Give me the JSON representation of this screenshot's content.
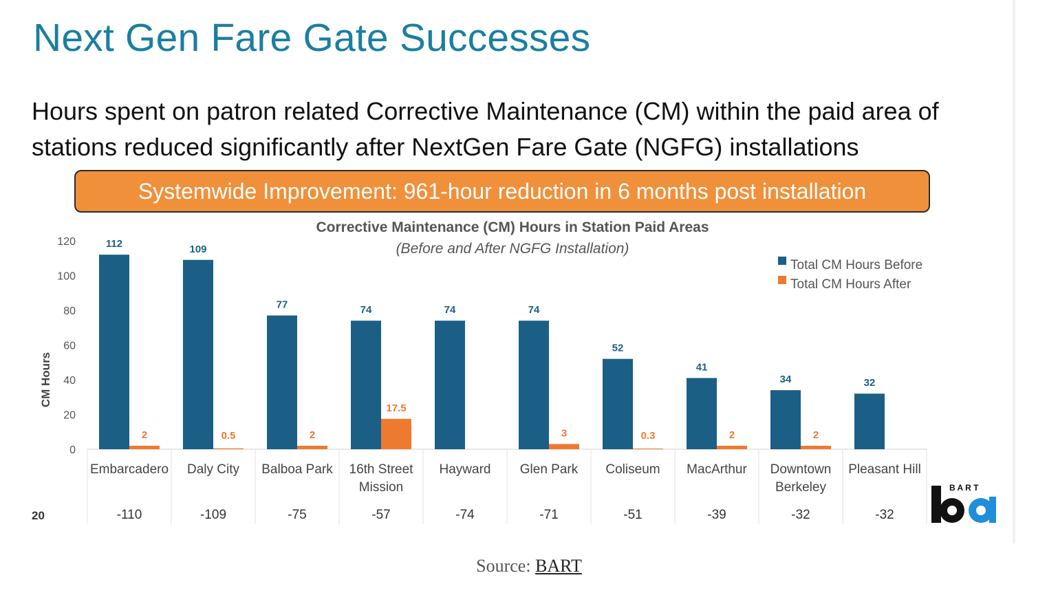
{
  "slide": {
    "title": "Next Gen Fare Gate Successes",
    "subtitle": "Hours spent on patron related Corrective Maintenance (CM) within the paid area of stations reduced significantly after NextGen Fare Gate (NGFG) installations",
    "banner": "Systemwide Improvement: 961-hour reduction in 6 months post installation",
    "page_number": "20",
    "logo_text": "B A R T"
  },
  "caption": {
    "prefix": "Source: ",
    "link_text": "BART"
  },
  "colors": {
    "title": "#1a7fa0",
    "before": "#1b5f86",
    "after": "#ee7a30",
    "banner": "#f0903a"
  },
  "chart_data": {
    "type": "bar",
    "title": "Corrective Maintenance (CM) Hours in Station Paid Areas",
    "subtitle": "(Before and After NGFG Installation)",
    "ylabel": "CM Hours",
    "xlabel": "",
    "ylim": [
      0,
      120
    ],
    "yticks": [
      0,
      20,
      40,
      60,
      80,
      100,
      120
    ],
    "legend_position": "top-right",
    "categories": [
      [
        "Embarcadero"
      ],
      [
        "Daly City"
      ],
      [
        "Balboa Park"
      ],
      [
        "16th Street",
        "Mission"
      ],
      [
        "Hayward"
      ],
      [
        "Glen Park"
      ],
      [
        "Coliseum"
      ],
      [
        "MacArthur"
      ],
      [
        "Downtown",
        "Berkeley"
      ],
      [
        "Pleasant Hill"
      ]
    ],
    "series": [
      {
        "name": "Total CM Hours Before",
        "values": [
          112,
          109,
          77,
          74,
          74,
          74,
          52,
          41,
          34,
          32
        ],
        "labels": [
          "112",
          "109",
          "77",
          "74",
          "74",
          "74",
          "52",
          "41",
          "34",
          "32"
        ]
      },
      {
        "name": "Total CM Hours After",
        "values": [
          2,
          0.5,
          2,
          17.5,
          0,
          3,
          0.3,
          2,
          2,
          0
        ],
        "labels": [
          "2",
          "0.5",
          "2",
          "17.5",
          "",
          "3",
          "0.3",
          "2",
          "2",
          ""
        ]
      }
    ],
    "differences": [
      "-110",
      "-109",
      "-75",
      "-57",
      "-74",
      "-71",
      "-51",
      "-39",
      "-32",
      "-32"
    ]
  }
}
